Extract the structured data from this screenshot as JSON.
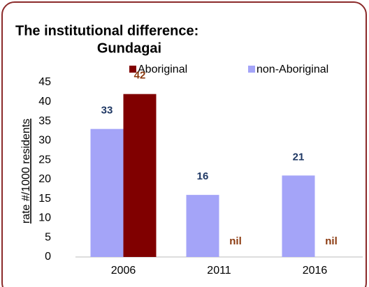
{
  "chart_data": {
    "type": "bar",
    "title": [
      "The institutional difference:",
      "Gundagai"
    ],
    "y_label": "rate #/1000 residents",
    "categories": [
      "2006",
      "2011",
      "2016"
    ],
    "series": [
      {
        "name": "Aboriginal",
        "color": "#800000",
        "values": [
          42,
          0,
          0
        ],
        "value_labels": [
          "42",
          "nil",
          "nil"
        ],
        "label_color": "#8b3a0f"
      },
      {
        "name": "non-Aboriginal",
        "color": "#a4a4f8",
        "values": [
          33,
          16,
          21
        ],
        "label_color": "#1f3864"
      }
    ],
    "ylim": [
      0,
      45
    ],
    "yticks": [
      0,
      5,
      10,
      15,
      20,
      25,
      30,
      35,
      40,
      45
    ],
    "legend": "top",
    "grid": false
  }
}
